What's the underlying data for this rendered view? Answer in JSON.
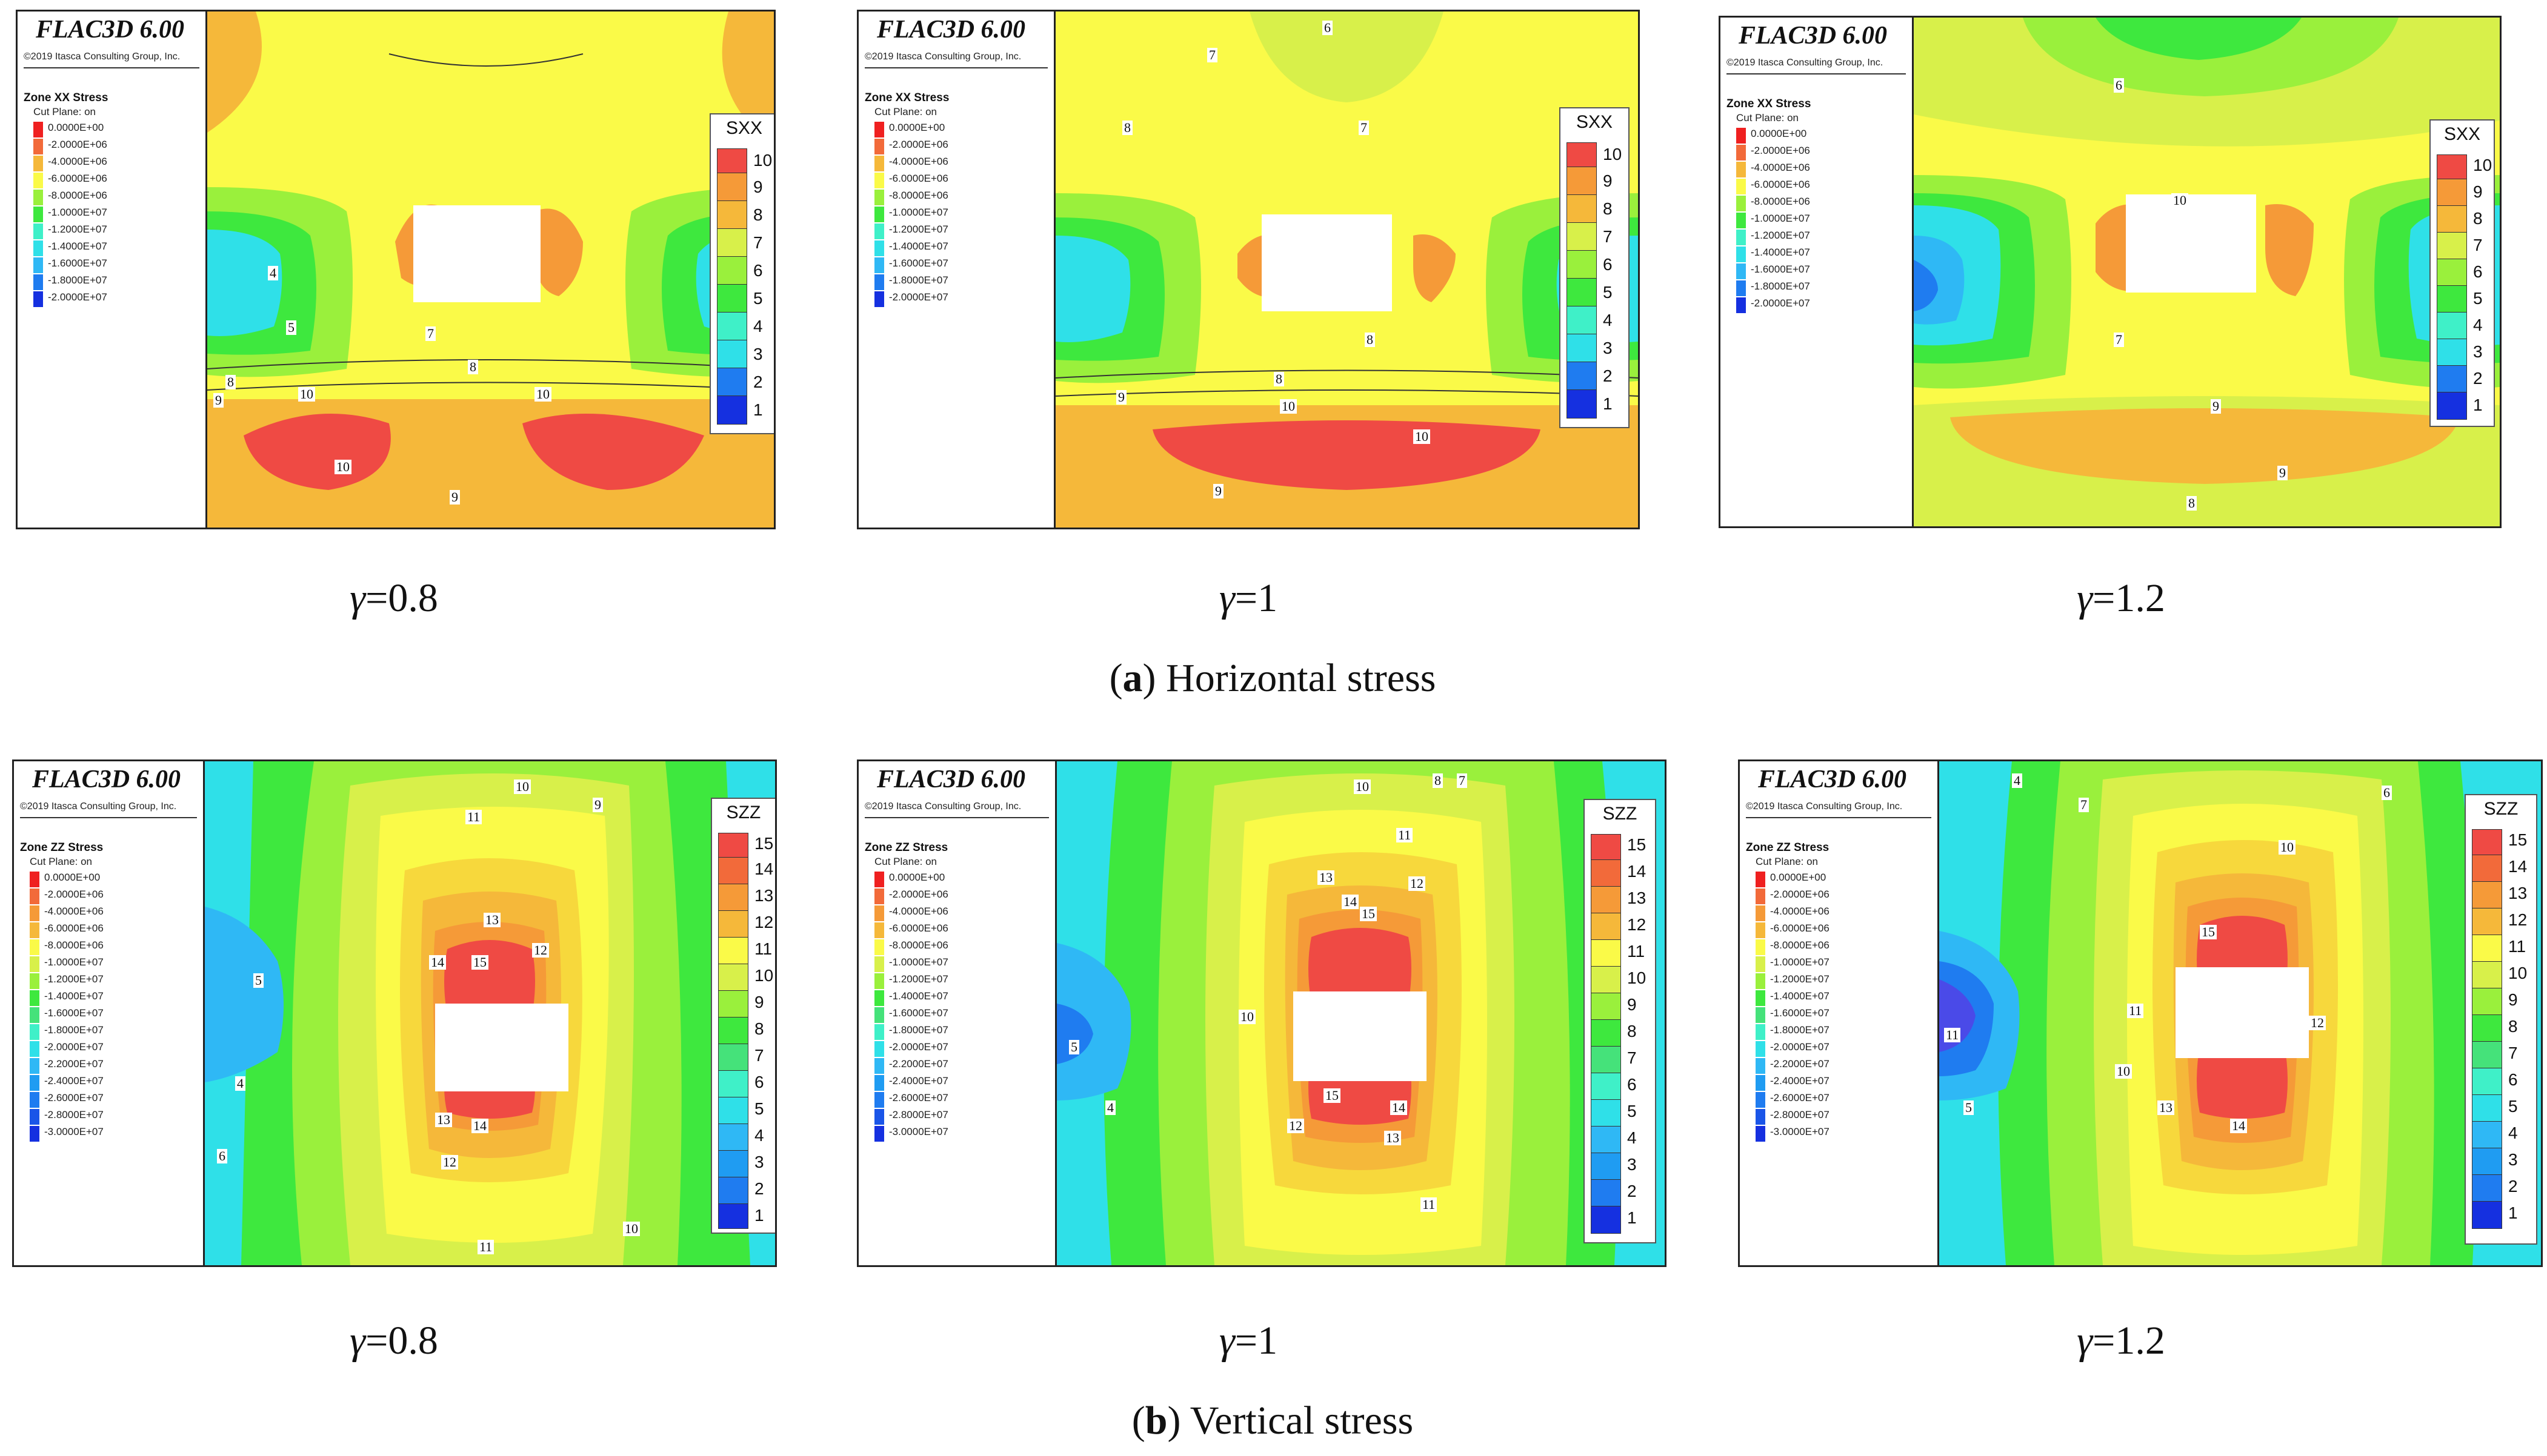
{
  "app_title": "FLAC3D 6.00",
  "copyright": "©2019 Itasca Consulting Group, Inc.",
  "cut_plane": "Cut Plane: on",
  "horizontal": {
    "zone_title": "Zone XX Stress",
    "colorbar_title": "SXX",
    "colorbar_labels": [
      "10",
      "9",
      "8",
      "7",
      "6",
      "5",
      "4",
      "3",
      "2",
      "1"
    ],
    "legend_values": [
      "0.0000E+00",
      "-2.0000E+06",
      "-4.0000E+06",
      "-6.0000E+06",
      "-8.0000E+06",
      "-1.0000E+07",
      "-1.2000E+07",
      "-1.4000E+07",
      "-1.6000E+07",
      "-1.8000E+07",
      "-2.0000E+07"
    ]
  },
  "vertical": {
    "zone_title": "Zone ZZ Stress",
    "colorbar_title": "SZZ",
    "colorbar_labels": [
      "15",
      "14",
      "13",
      "12",
      "11",
      "10",
      "9",
      "8",
      "7",
      "6",
      "5",
      "4",
      "3",
      "2",
      "1"
    ],
    "legend_values": [
      "0.0000E+00",
      "-2.0000E+06",
      "-4.0000E+06",
      "-6.0000E+06",
      "-8.0000E+06",
      "-1.0000E+07",
      "-1.2000E+07",
      "-1.4000E+07",
      "-1.6000E+07",
      "-1.8000E+07",
      "-2.0000E+07",
      "-2.2000E+07",
      "-2.4000E+07",
      "-2.6000E+07",
      "-2.8000E+07",
      "-3.0000E+07"
    ]
  },
  "gamma_captions": [
    "=0.8",
    "=1",
    "=1.2"
  ],
  "gamma_symbol": "γ",
  "section_a": {
    "letter": "a",
    "text": " Horizontal stress"
  },
  "section_b": {
    "letter": "b",
    "text": " Vertical stress"
  },
  "contour_labels": {
    "h": [
      "10",
      "9",
      "8",
      "7",
      "6",
      "5",
      "4"
    ],
    "v": [
      "15",
      "14",
      "13",
      "12",
      "11",
      "10",
      "9",
      "8",
      "7",
      "6",
      "5",
      "4"
    ]
  },
  "colors": {
    "c1": "#1530e0",
    "c2": "#1f7cf0",
    "c3": "#2fb8f5",
    "c4": "#2fe0e8",
    "c5": "#3ff0c8",
    "c6": "#45e27a",
    "c7": "#3ee83e",
    "c8": "#9af03c",
    "c9": "#d8f04a",
    "c10": "#fafa48",
    "c11": "#f7d83c",
    "c12": "#f5b83a",
    "c13": "#f59a38",
    "c14": "#f26a3a",
    "c15": "#ef4a44"
  }
}
